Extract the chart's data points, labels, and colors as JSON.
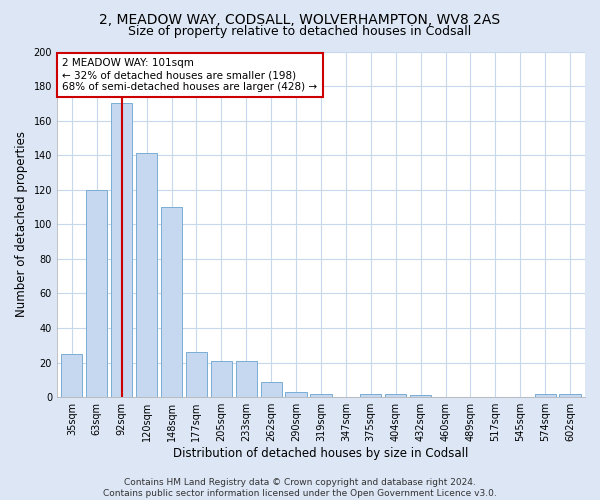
{
  "title": "2, MEADOW WAY, CODSALL, WOLVERHAMPTON, WV8 2AS",
  "subtitle": "Size of property relative to detached houses in Codsall",
  "xlabel": "Distribution of detached houses by size in Codsall",
  "ylabel": "Number of detached properties",
  "bar_labels": [
    "35sqm",
    "63sqm",
    "92sqm",
    "120sqm",
    "148sqm",
    "177sqm",
    "205sqm",
    "233sqm",
    "262sqm",
    "290sqm",
    "319sqm",
    "347sqm",
    "375sqm",
    "404sqm",
    "432sqm",
    "460sqm",
    "489sqm",
    "517sqm",
    "545sqm",
    "574sqm",
    "602sqm"
  ],
  "bar_values": [
    25,
    120,
    170,
    141,
    110,
    26,
    21,
    21,
    9,
    3,
    2,
    0,
    2,
    2,
    1,
    0,
    0,
    0,
    0,
    2,
    2
  ],
  "bar_color": "#c5d8f0",
  "bar_edge_color": "#7aadd4",
  "vline_x": 2,
  "vline_color": "#cc0000",
  "annotation_text": "2 MEADOW WAY: 101sqm\n← 32% of detached houses are smaller (198)\n68% of semi-detached houses are larger (428) →",
  "annotation_box_color": "#ffffff",
  "annotation_box_edge": "#cc0000",
  "ylim": [
    0,
    200
  ],
  "yticks": [
    0,
    20,
    40,
    60,
    80,
    100,
    120,
    140,
    160,
    180,
    200
  ],
  "fig_bg_color": "#dce6f5",
  "plot_bg_color": "#ffffff",
  "grid_color": "#c8d8ec",
  "footer": "Contains HM Land Registry data © Crown copyright and database right 2024.\nContains public sector information licensed under the Open Government Licence v3.0.",
  "title_fontsize": 10,
  "subtitle_fontsize": 9,
  "xlabel_fontsize": 8.5,
  "ylabel_fontsize": 8.5,
  "tick_fontsize": 7,
  "footer_fontsize": 6.5,
  "annotation_fontsize": 7.5
}
